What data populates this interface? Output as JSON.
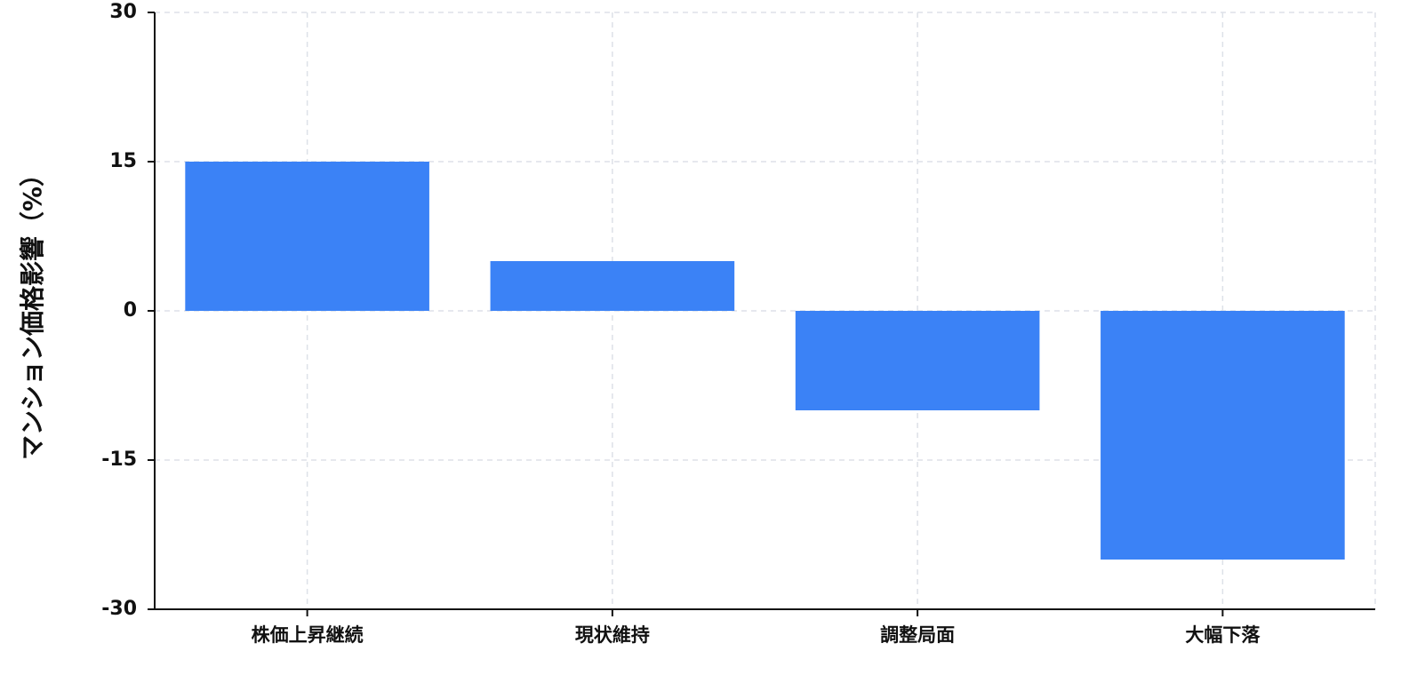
{
  "chart_data": {
    "type": "bar",
    "y_label": "マンション価格影響（%）",
    "categories": [
      "株価上昇継続",
      "現状維持",
      "調整局面",
      "大幅下落"
    ],
    "values": [
      15,
      5,
      -10,
      -25
    ],
    "color": "#3b82f6",
    "ylim": [
      -30,
      30
    ],
    "yticks": [
      -30,
      -15,
      0,
      15,
      30
    ],
    "grid": true
  }
}
